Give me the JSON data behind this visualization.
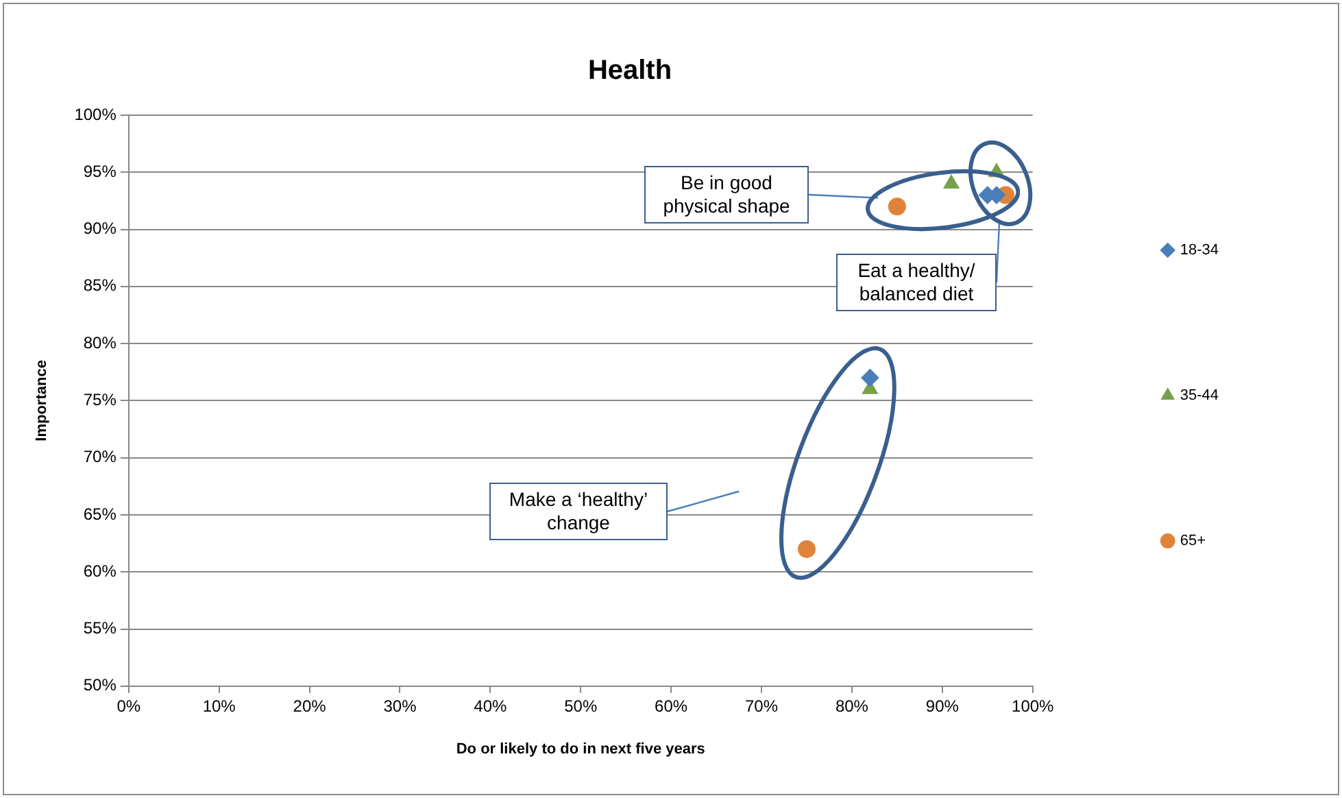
{
  "chart_data": {
    "type": "scatter",
    "title": "Health",
    "xlabel": "Do or likely to do in next five years",
    "ylabel": "Importance",
    "xlim": [
      0,
      100
    ],
    "ylim": [
      50,
      100
    ],
    "xticks": [
      {
        "value": 0,
        "label": "0%"
      },
      {
        "value": 10,
        "label": "10%"
      },
      {
        "value": 20,
        "label": "20%"
      },
      {
        "value": 30,
        "label": "30%"
      },
      {
        "value": 40,
        "label": "40%"
      },
      {
        "value": 50,
        "label": "50%"
      },
      {
        "value": 60,
        "label": "60%"
      },
      {
        "value": 70,
        "label": "70%"
      },
      {
        "value": 80,
        "label": "80%"
      },
      {
        "value": 90,
        "label": "90%"
      },
      {
        "value": 100,
        "label": "100%"
      }
    ],
    "yticks": [
      {
        "value": 50,
        "label": "50%"
      },
      {
        "value": 55,
        "label": "55%"
      },
      {
        "value": 60,
        "label": "60%"
      },
      {
        "value": 65,
        "label": "65%"
      },
      {
        "value": 70,
        "label": "70%"
      },
      {
        "value": 75,
        "label": "75%"
      },
      {
        "value": 80,
        "label": "80%"
      },
      {
        "value": 85,
        "label": "85%"
      },
      {
        "value": 90,
        "label": "90%"
      },
      {
        "value": 95,
        "label": "95%"
      },
      {
        "value": 100,
        "label": "100%"
      }
    ],
    "grid": "y",
    "legend": "right",
    "series": [
      {
        "name": "18-34",
        "color": "#4a7ebb",
        "marker": "diamond",
        "x": [
          95,
          96,
          82
        ],
        "values": [
          93,
          93,
          77
        ]
      },
      {
        "name": "35-44",
        "color": "#77a04a",
        "marker": "triangle",
        "x": [
          91,
          96,
          82
        ],
        "values": [
          94,
          95,
          76
        ]
      },
      {
        "name": "65+",
        "color": "#e0833a",
        "marker": "circle",
        "x": [
          85,
          97,
          75
        ],
        "values": [
          92,
          93,
          62
        ]
      }
    ],
    "annotations": [
      "Be in good physical shape",
      "Eat a healthy/ balanced diet",
      "Make a ‘healthy’ change"
    ]
  }
}
